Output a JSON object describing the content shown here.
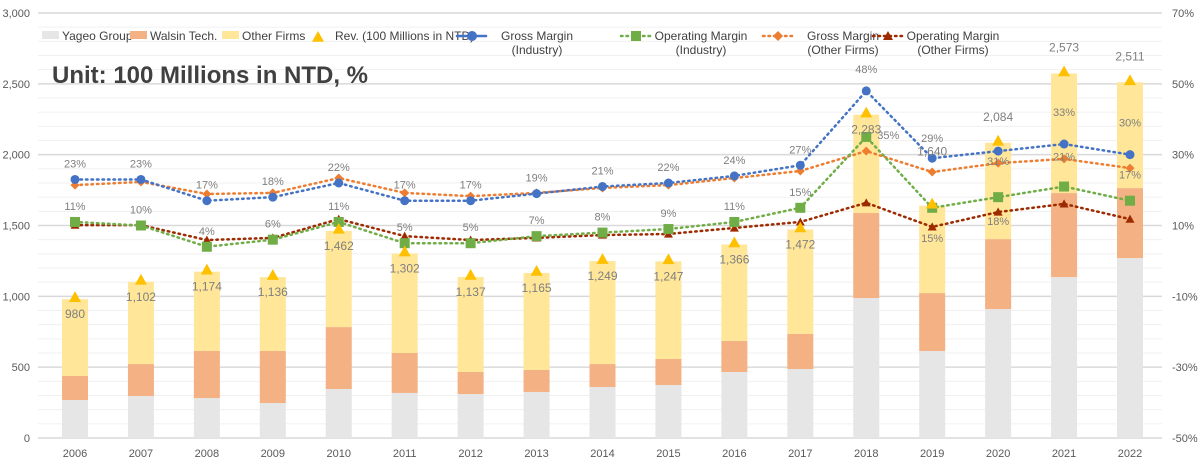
{
  "chart_data": {
    "type": "bar",
    "subtitle": "Unit: 100 Millions in NTD, %",
    "categories": [
      "2006",
      "2007",
      "2008",
      "2009",
      "2010",
      "2011",
      "2012",
      "2013",
      "2014",
      "2015",
      "2016",
      "2017",
      "2018",
      "2019",
      "2020",
      "2021",
      "2022"
    ],
    "left_axis": {
      "ylim": [
        0,
        3000
      ],
      "ticks": [
        "0",
        "500",
        "1,000",
        "1,500",
        "2,000",
        "2,500",
        "3,000"
      ]
    },
    "right_axis": {
      "ylim": [
        -50,
        70
      ],
      "ticks": [
        "-50%",
        "-30%",
        "-10%",
        "10%",
        "30%",
        "50%",
        "70%"
      ]
    },
    "grid": true,
    "legend_position": "top",
    "stacked_series": [
      {
        "name": "Yageo Group",
        "color": "#e7e6e6",
        "values": [
          268,
          296,
          282,
          247,
          346,
          318,
          310,
          325,
          360,
          374,
          466,
          487,
          988,
          614,
          910,
          1136,
          1270
        ]
      },
      {
        "name": "Walsin Tech.",
        "color": "#f4b183",
        "values": [
          170,
          226,
          332,
          367,
          437,
          282,
          156,
          155,
          162,
          184,
          219,
          247,
          600,
          409,
          494,
          593,
          494
        ]
      },
      {
        "name": "Other Firms",
        "color": "#ffe699",
        "values": [
          542,
          580,
          560,
          522,
          679,
          702,
          671,
          685,
          727,
          689,
          681,
          738,
          695,
          617,
          680,
          844,
          747
        ]
      }
    ],
    "revenue": {
      "name": "Rev. (100 Millions in NTD)",
      "color": "#ffc000",
      "values": [
        980,
        1102,
        1174,
        1136,
        1462,
        1302,
        1137,
        1165,
        1249,
        1247,
        1366,
        1472,
        2283,
        1640,
        2084,
        2573,
        2511
      ],
      "labels": [
        "980",
        "1,102",
        "1,174",
        "1,136",
        "1,462",
        "1,302",
        "1,137",
        "1,165",
        "1,249",
        "1,247",
        "1,366",
        "1,472",
        "2,283",
        "1,640",
        "2,084",
        "2,573",
        "2,511"
      ]
    },
    "line_series": [
      {
        "name": "Gross Margin (Industry)",
        "name_lines": [
          "Gross Margin",
          "(Industry)"
        ],
        "color": "#4472c4",
        "marker": "circle",
        "values": [
          23,
          23,
          17,
          18,
          22,
          17,
          17,
          19,
          21,
          22,
          24,
          27,
          48,
          29,
          31,
          33,
          30
        ],
        "labels": [
          "23%",
          "23%",
          "17%",
          "18%",
          "22%",
          "17%",
          "17%",
          "19%",
          "21%",
          "22%",
          "24%",
          "27%",
          "48%",
          "29%",
          "31%",
          "33%",
          "30%"
        ]
      },
      {
        "name": "Operating Margin (Industry)",
        "name_lines": [
          "Operating Margin",
          "(Industry)"
        ],
        "color": "#70ad47",
        "marker": "square",
        "values": [
          11,
          10,
          4,
          6,
          11,
          5,
          5,
          7,
          8,
          9,
          11,
          15,
          35,
          15,
          18,
          21,
          17
        ],
        "labels": [
          "11%",
          "10%",
          "4%",
          "6%",
          "11%",
          "5%",
          "5%",
          "7%",
          "8%",
          "9%",
          "11%",
          "15%",
          "35%",
          "15%",
          "18%",
          "21%",
          "17%"
        ]
      },
      {
        "name": "Gross Margin (Other Firms)",
        "name_lines": [
          "Gross Margin",
          "(Other Firms)"
        ],
        "color": "#ed7d31",
        "marker": "diamond",
        "values": [
          21.4,
          22.3,
          18.9,
          19.2,
          23.4,
          19.2,
          18.3,
          19.2,
          20.6,
          21.4,
          23.4,
          25.4,
          31.0,
          25.1,
          27.6,
          28.8,
          26.2
        ]
      },
      {
        "name": "Operating Margin (Other Firms)",
        "name_lines": [
          "Operating Margin",
          "(Other Firms)"
        ],
        "color": "#9e2a00",
        "marker": "triangle",
        "values": [
          10.1,
          10.1,
          5.9,
          6.5,
          11.8,
          7.0,
          5.9,
          6.5,
          7.3,
          7.6,
          9.3,
          11.0,
          16.4,
          9.6,
          13.8,
          16.1,
          11.8
        ]
      }
    ]
  }
}
